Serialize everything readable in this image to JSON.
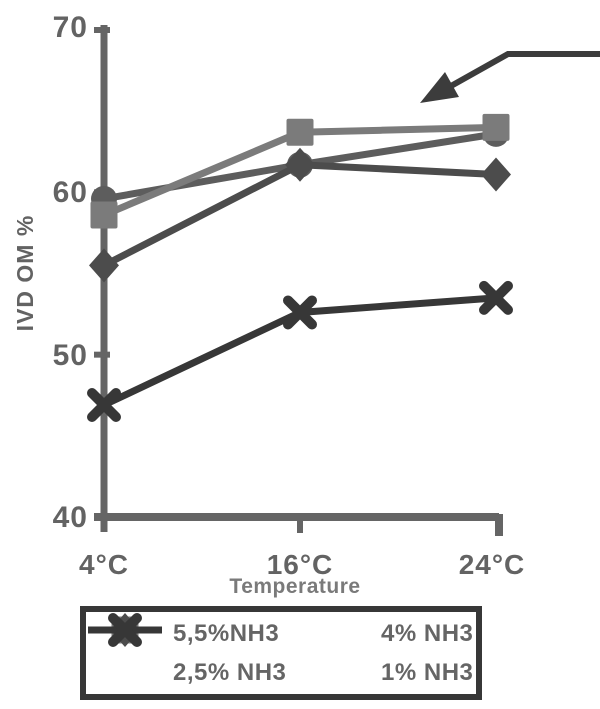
{
  "chart_data": {
    "type": "line",
    "title": "",
    "xlabel": "Temperature",
    "ylabel": "IVD OM %",
    "categories": [
      "4°C",
      "16°C",
      "24°C"
    ],
    "yticks": [
      "70",
      "60",
      "50",
      "40"
    ],
    "ylim": [
      40,
      70
    ],
    "grid": false,
    "legend_position": "bottom-box-2x2",
    "series": [
      {
        "name": "5,5%NH3",
        "marker": "circle",
        "color": "#5e5e5e",
        "values": [
          59.6,
          61.7,
          63.6
        ]
      },
      {
        "name": "4% NH3",
        "marker": "square",
        "color": "#7b7b7b",
        "values": [
          58.6,
          63.7,
          64.0
        ]
      },
      {
        "name": "2,5% NH3",
        "marker": "diamond",
        "color": "#4d4d4d",
        "values": [
          55.5,
          61.7,
          61.1
        ]
      },
      {
        "name": "1% NH3",
        "marker": "x",
        "color": "#383838",
        "values": [
          46.9,
          52.6,
          53.5
        ]
      }
    ],
    "annotation": {
      "type": "arrow-callout",
      "description": "arrow entering from right edge, bending down-left, pointing at the 4% NH3 / 5,5% NH3 lines",
      "color": "#3d3d3d"
    },
    "axis_color": "#666666",
    "text_color": "#646464"
  }
}
